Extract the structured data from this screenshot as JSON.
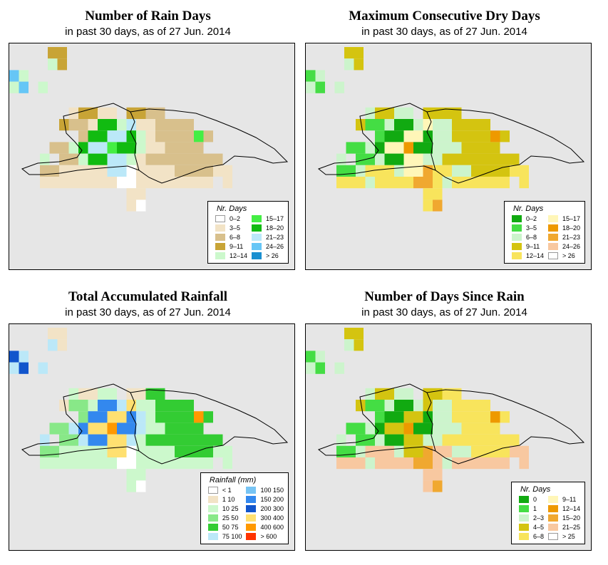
{
  "panels": [
    {
      "id": "rain-days",
      "title": "Number of Rain Days",
      "subtitle": "in past 30 days, as of  27 Jun. 2014",
      "legend_title": "Nr. Days",
      "legend": [
        {
          "label": "0–2",
          "color": "#ffffff"
        },
        {
          "label": "3–5",
          "color": "#f2e3c6"
        },
        {
          "label": "6–8",
          "color": "#d8c08c"
        },
        {
          "label": "9–11",
          "color": "#c8a436"
        },
        {
          "label": "12–14",
          "color": "#ccf8cc"
        },
        {
          "label": "15–17",
          "color": "#44ee44"
        },
        {
          "label": "18–20",
          "color": "#11bb11"
        },
        {
          "label": "21–23",
          "color": "#bbe8f8"
        },
        {
          "label": "24–26",
          "color": "#66c6f6"
        },
        {
          "label": "> 26",
          "color": "#1a8fd0"
        }
      ]
    },
    {
      "id": "dry-days",
      "title": "Maximum Consecutive Dry Days",
      "subtitle": "in past 30 days, as of  27 Jun. 2014",
      "legend_title": "Nr. Days",
      "legend": [
        {
          "label": "0–2",
          "color": "#11aa11"
        },
        {
          "label": "3–5",
          "color": "#44dd44"
        },
        {
          "label": "6–8",
          "color": "#ccf4cc"
        },
        {
          "label": "9–11",
          "color": "#d4c410"
        },
        {
          "label": "12–14",
          "color": "#f8e45c"
        },
        {
          "label": "15–17",
          "color": "#fff6b8"
        },
        {
          "label": "18–20",
          "color": "#ee9900"
        },
        {
          "label": "21–23",
          "color": "#f0a830"
        },
        {
          "label": "24–26",
          "color": "#f8c8a0"
        },
        {
          "label": "> 26",
          "color": "#ffffff"
        }
      ]
    },
    {
      "id": "rainfall",
      "title": "Total Accumulated Rainfall",
      "subtitle": "in past 30 days, as of  27 Jun. 2014",
      "legend_title": "Rainfall (mm)",
      "legend": [
        {
          "label": "< 1",
          "color": "#ffffff"
        },
        {
          "label": "1    10",
          "color": "#f2e3c6"
        },
        {
          "label": "10    25",
          "color": "#ccf8cc"
        },
        {
          "label": "25    50",
          "color": "#88e888"
        },
        {
          "label": "50    75",
          "color": "#33cc33"
        },
        {
          "label": "75   100",
          "color": "#bbe8f8"
        },
        {
          "label": "100   150",
          "color": "#77c4f4"
        },
        {
          "label": "150   200",
          "color": "#3388ee"
        },
        {
          "label": "200   300",
          "color": "#1155cc"
        },
        {
          "label": "300   400",
          "color": "#ffe070"
        },
        {
          "label": "400   600",
          "color": "#ff9900"
        },
        {
          "label": "> 600",
          "color": "#ff3300"
        }
      ]
    },
    {
      "id": "since-rain",
      "title": "Number of Days Since Rain",
      "subtitle": "in past 30 days, as of  27 Jun. 2014",
      "legend_title": "Nr. Days",
      "legend": [
        {
          "label": "0",
          "color": "#11aa11"
        },
        {
          "label": "1",
          "color": "#44dd44"
        },
        {
          "label": "2–3",
          "color": "#ccf4cc"
        },
        {
          "label": "4–5",
          "color": "#d4c410"
        },
        {
          "label": "6–8",
          "color": "#f8e45c"
        },
        {
          "label": "9–11",
          "color": "#fff6b8"
        },
        {
          "label": "12–14",
          "color": "#ee9900"
        },
        {
          "label": "15–20",
          "color": "#f0a830"
        },
        {
          "label": "21–25",
          "color": "#f8c8a0"
        },
        {
          "label": "> 25",
          "color": "#ffffff"
        }
      ]
    }
  ]
}
